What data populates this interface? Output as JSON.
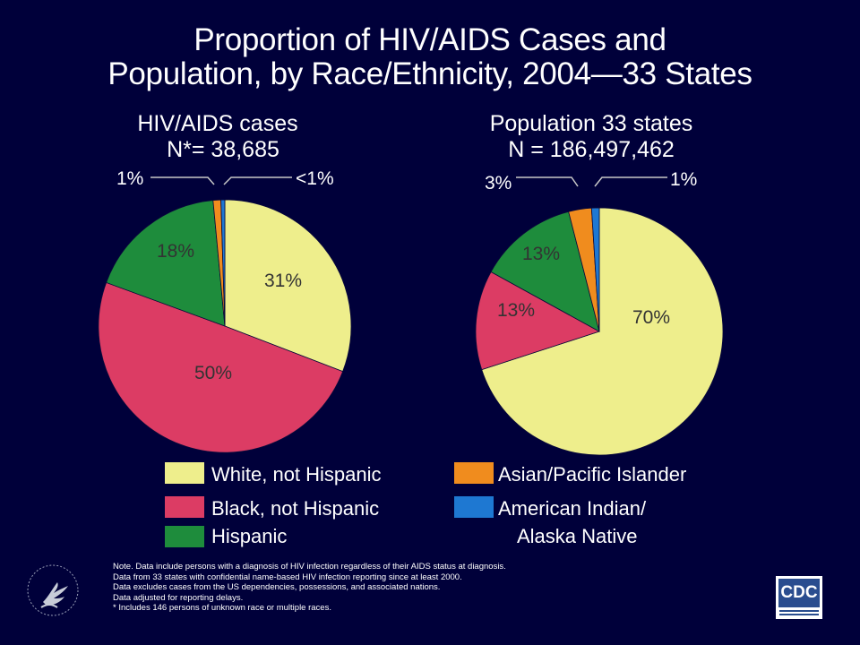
{
  "title": {
    "line1": "Proportion of HIV/AIDS Cases and",
    "line2": "Population, by Race/Ethnicity, 2004—33 States"
  },
  "chart_data": [
    {
      "type": "pie",
      "title": "HIV/AIDS cases",
      "subtitle": "N*= 38,685",
      "slices": [
        {
          "name": "White, not Hispanic",
          "value": 31,
          "label": "31%",
          "color": "#EEEE8C"
        },
        {
          "name": "Black, not Hispanic",
          "value": 50,
          "label": "50%",
          "color": "#DC3C64"
        },
        {
          "name": "Hispanic",
          "value": 18,
          "label": "18%",
          "color": "#1E8C3C"
        },
        {
          "name": "Asian/Pacific Islander",
          "value": 1,
          "label": "1%",
          "color": "#F08C1E"
        },
        {
          "name": "American Indian/ Alaska Native",
          "value": 0.5,
          "label": "<1%",
          "color": "#1E78D2"
        }
      ]
    },
    {
      "type": "pie",
      "title": "Population 33 states",
      "subtitle": "N = 186,497,462",
      "slices": [
        {
          "name": "White, not Hispanic",
          "value": 70,
          "label": "70%",
          "color": "#EEEE8C"
        },
        {
          "name": "Black, not Hispanic",
          "value": 13,
          "label": "13%",
          "color": "#DC3C64"
        },
        {
          "name": "Hispanic",
          "value": 13,
          "label": "13%",
          "color": "#1E8C3C"
        },
        {
          "name": "Asian/Pacific Islander",
          "value": 3,
          "label": "3%",
          "color": "#F08C1E"
        },
        {
          "name": "American Indian/ Alaska Native",
          "value": 1,
          "label": "1%",
          "color": "#1E78D2"
        }
      ]
    }
  ],
  "legend": {
    "items": [
      {
        "label": "White, not Hispanic",
        "color": "#EEEE8C"
      },
      {
        "label": "Black, not Hispanic",
        "color": "#DC3C64"
      },
      {
        "label": "Hispanic",
        "color": "#1E8C3C"
      },
      {
        "label": "Asian/Pacific Islander",
        "color": "#F08C1E"
      },
      {
        "label": "American Indian/",
        "label2": "Alaska Native",
        "color": "#1E78D2"
      }
    ]
  },
  "notes": [
    "Note. Data include persons with a diagnosis of HIV infection regardless of their AIDS status at diagnosis.",
    "Data from 33 states with confidential name-based HIV infection reporting since at least 2000.",
    "Data excludes cases from the US dependencies, possessions, and associated nations.",
    "Data adjusted for reporting delays.",
    "* Includes 146 persons of unknown race or multiple races."
  ],
  "logos": {
    "cdc": "CDC",
    "hhs": "hhs-eagle-icon"
  },
  "colors": {
    "background": "#00003A",
    "text": "#FFFFFF",
    "leader_line": "#C8C8C8"
  }
}
